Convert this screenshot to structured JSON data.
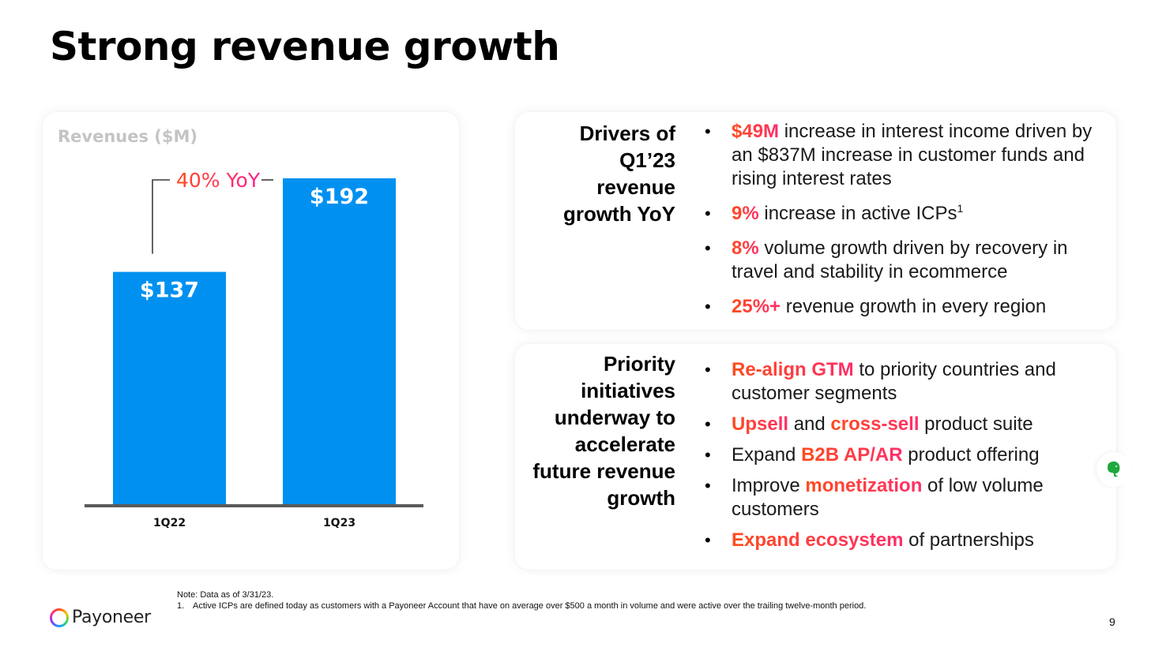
{
  "page": {
    "title": "Strong revenue growth",
    "page_number": "9"
  },
  "colors": {
    "bar": "#0091f0",
    "axis": "#5a5a5a",
    "highlight_start": "#ff4a1c",
    "highlight_end": "#ff2d6a",
    "chart_title": "#c4c4c4"
  },
  "chart_data": {
    "type": "bar",
    "title": "Revenues ($M)",
    "categories": [
      "1Q22",
      "1Q23"
    ],
    "values": [
      137,
      192
    ],
    "value_labels": [
      "$137",
      "$192"
    ],
    "annotation": "40% YoY",
    "xlabel": "",
    "ylabel": "",
    "ylim": [
      0,
      192
    ],
    "grid": false,
    "legend": "none"
  },
  "drivers": {
    "label_lines": [
      "Drivers of",
      "Q1’23",
      "revenue",
      "growth YoY"
    ],
    "bullets": [
      {
        "highlight": "$49M",
        "text": " increase in interest income driven by an $837M increase in customer funds and rising interest rates"
      },
      {
        "highlight": "9%",
        "text": " increase in active ICPs",
        "sup": "1"
      },
      {
        "highlight": "8%",
        "text": " volume growth driven by recovery in travel and stability in ecommerce"
      },
      {
        "highlight": "25%+",
        "text": " revenue growth in every region"
      }
    ]
  },
  "priority": {
    "label_lines": [
      "Priority",
      "initiatives",
      "underway to",
      "accelerate",
      "future revenue",
      "growth"
    ],
    "bullets": [
      {
        "parts": [
          {
            "t": "Re-align GTM",
            "hl": true
          },
          {
            "t": " to priority countries and customer segments",
            "hl": false
          }
        ]
      },
      {
        "parts": [
          {
            "t": "Upsell",
            "hl": true
          },
          {
            "t": " and ",
            "hl": false
          },
          {
            "t": "cross-sell",
            "hl": true
          },
          {
            "t": " product suite",
            "hl": false
          }
        ]
      },
      {
        "parts": [
          {
            "t": "Expand ",
            "hl": false
          },
          {
            "t": "B2B AP/AR",
            "hl": true
          },
          {
            "t": " product offering",
            "hl": false
          }
        ]
      },
      {
        "parts": [
          {
            "t": "Improve ",
            "hl": false
          },
          {
            "t": "monetization",
            "hl": true
          },
          {
            "t": " of low volume customers",
            "hl": false
          }
        ]
      },
      {
        "parts": [
          {
            "t": "Expand ecosystem",
            "hl": true
          },
          {
            "t": " of partnerships",
            "hl": false
          }
        ]
      }
    ]
  },
  "footer": {
    "logo_text": "Payoneer",
    "note": "Note: Data as of 3/31/23.",
    "footnote_number": "1.",
    "footnote_text": "Active ICPs are defined today as customers with a Payoneer Account that have on average over $500 a month in volume and were active over the trailing twelve-month period."
  },
  "icons": {
    "bullet": "•",
    "evernote": "evernote-icon",
    "logo": "payoneer-ring-icon"
  }
}
